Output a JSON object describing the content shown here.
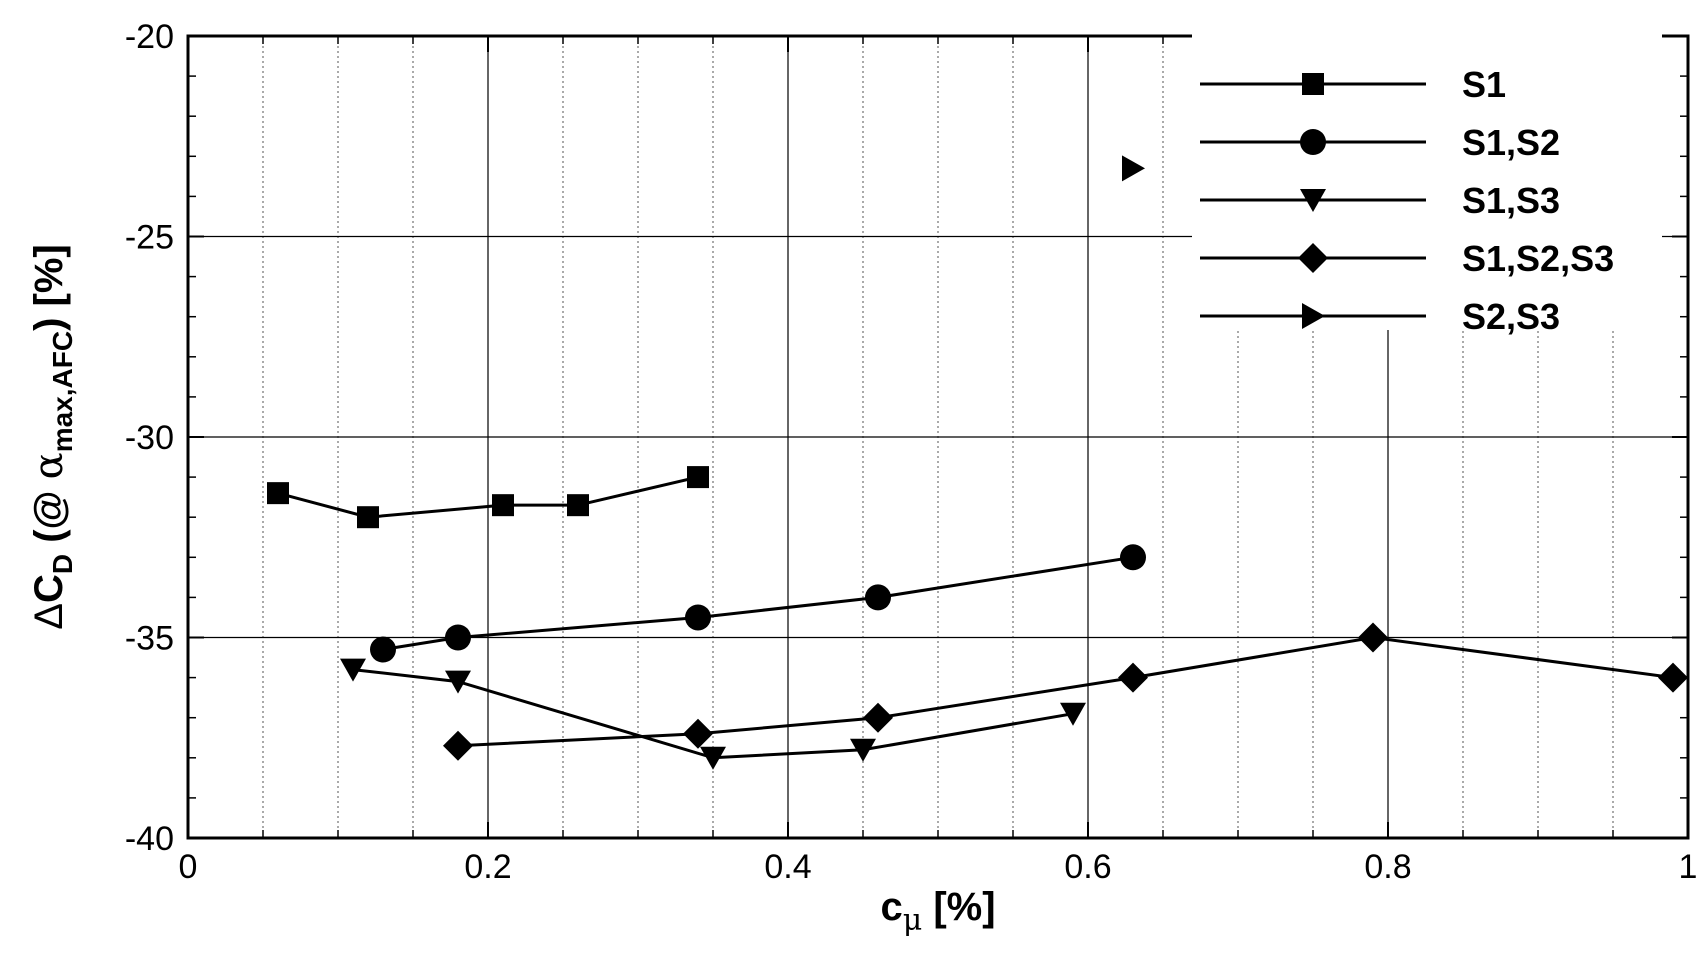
{
  "chart_data": {
    "type": "line",
    "title": "",
    "xlabel": {
      "main": "c",
      "sub": "μ",
      "unit": " [%]"
    },
    "ylabel": {
      "delta": "Δ",
      "main": "C",
      "sub": "D",
      "open": " (@ ",
      "alpha": "α",
      "alpha_sub": "max,AFC",
      "close": ") [%]"
    },
    "xlim": [
      0,
      1
    ],
    "ylim": [
      -40,
      -20
    ],
    "x_ticks": [
      0,
      0.2,
      0.4,
      0.6,
      0.8,
      1
    ],
    "x_tick_labels": [
      "0",
      "0.2",
      "0.4",
      "0.6",
      "0.8",
      "1"
    ],
    "x_minor_ticks": [
      0.05,
      0.1,
      0.15,
      0.25,
      0.3,
      0.35,
      0.45,
      0.5,
      0.55,
      0.65,
      0.7,
      0.75,
      0.85,
      0.9,
      0.95
    ],
    "y_ticks": [
      -40,
      -35,
      -30,
      -25,
      -20
    ],
    "y_tick_labels": [
      "-40",
      "-35",
      "-30",
      "-25",
      "-20"
    ],
    "y_minor_ticks": [
      -39,
      -38,
      -37,
      -36,
      -34,
      -33,
      -32,
      -31,
      -29,
      -28,
      -27,
      -26,
      -24,
      -23,
      -22,
      -21
    ],
    "grid": true,
    "legend_position": "top-right",
    "series": [
      {
        "name": "S1",
        "marker": "square",
        "x": [
          0.06,
          0.12,
          0.21,
          0.26,
          0.34
        ],
        "y": [
          -31.4,
          -32.0,
          -31.7,
          -31.7,
          -31.0
        ]
      },
      {
        "name": "S1,S2",
        "marker": "circle",
        "x": [
          0.13,
          0.18,
          0.34,
          0.46,
          0.63
        ],
        "y": [
          -35.3,
          -35.0,
          -34.5,
          -34.0,
          -33.0
        ]
      },
      {
        "name": "S1,S3",
        "marker": "triangle-down",
        "x": [
          0.11,
          0.18,
          0.35,
          0.45,
          0.59
        ],
        "y": [
          -35.8,
          -36.1,
          -38.0,
          -37.8,
          -36.9
        ]
      },
      {
        "name": "S1,S2,S3",
        "marker": "diamond",
        "x": [
          0.18,
          0.34,
          0.46,
          0.63,
          0.79,
          0.99
        ],
        "y": [
          -37.7,
          -37.4,
          -37.0,
          -36.0,
          -35.0,
          -36.0
        ]
      },
      {
        "name": "S2,S3",
        "marker": "triangle-right",
        "x": [
          0.63
        ],
        "y": [
          -23.3
        ]
      }
    ]
  }
}
